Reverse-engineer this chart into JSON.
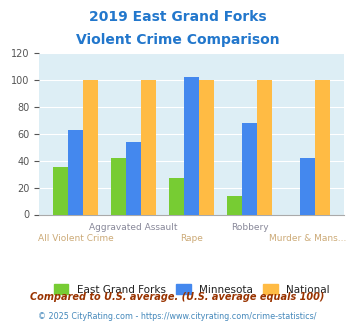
{
  "title_line1": "2019 East Grand Forks",
  "title_line2": "Violent Crime Comparison",
  "title_color": "#2277cc",
  "categories": [
    "All Violent Crime",
    "Aggravated Assault",
    "Rape",
    "Robbery",
    "Murder & Mans..."
  ],
  "egf_values": [
    35,
    42,
    27,
    14,
    0
  ],
  "mn_values": [
    63,
    54,
    102,
    68,
    42
  ],
  "nat_values": [
    100,
    100,
    100,
    100,
    100
  ],
  "egf_color": "#77cc33",
  "mn_color": "#4488ee",
  "nat_color": "#ffbb44",
  "ylim": [
    0,
    120
  ],
  "yticks": [
    0,
    20,
    40,
    60,
    80,
    100,
    120
  ],
  "legend_labels": [
    "East Grand Forks",
    "Minnesota",
    "National"
  ],
  "footnote1": "Compared to U.S. average. (U.S. average equals 100)",
  "footnote2": "© 2025 CityRating.com - https://www.cityrating.com/crime-statistics/",
  "footnote1_color": "#993300",
  "footnote2_color": "#4488bb",
  "fig_bg_color": "#ffffff",
  "plot_bg_color": "#ddeef5",
  "xlabel_color_high": "#aaaaaa",
  "xlabel_color_low": "#ddbb88"
}
